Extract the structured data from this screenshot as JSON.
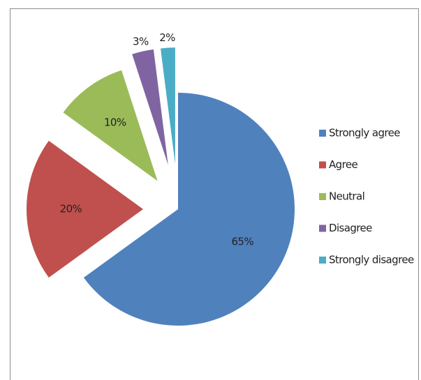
{
  "chart_data": {
    "type": "pie",
    "categories": [
      "Strongly agree",
      "Agree",
      "Neutral",
      "Disagree",
      "Strongly disagree"
    ],
    "values": [
      65,
      20,
      10,
      3,
      2
    ],
    "value_labels": [
      "65%",
      "20%",
      "10%",
      "3%",
      "2%"
    ],
    "colors": [
      "#4f81bd",
      "#c0504d",
      "#9bbb59",
      "#8064a2",
      "#4bacc6"
    ],
    "legend": "right"
  }
}
